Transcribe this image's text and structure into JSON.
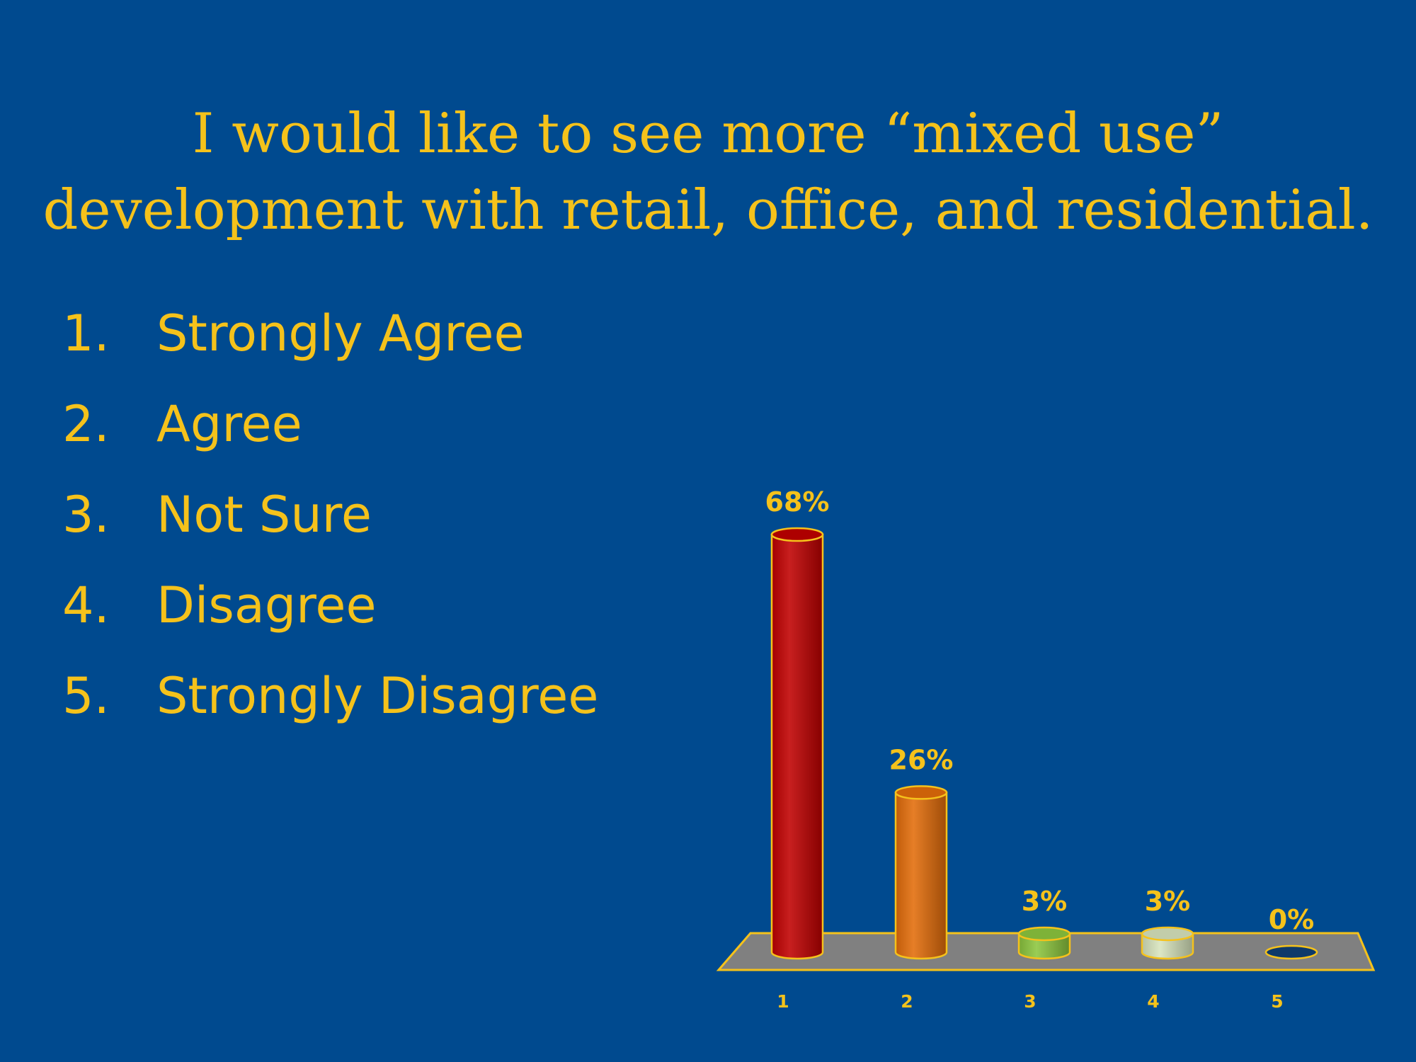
{
  "slide": {
    "title_line1": "I would like to see more “mixed use”",
    "title_line2": "development  with retail, office, and residential."
  },
  "options": [
    {
      "num": "1.",
      "label": "Strongly Agree"
    },
    {
      "num": "2.",
      "label": "Agree"
    },
    {
      "num": "3.",
      "label": "Not Sure"
    },
    {
      "num": "4.",
      "label": "Disagree"
    },
    {
      "num": "5.",
      "label": "Strongly Disagree"
    }
  ],
  "chart_data": {
    "type": "bar",
    "categories": [
      "1",
      "2",
      "3",
      "4",
      "5"
    ],
    "values": [
      68,
      26,
      3,
      3,
      0
    ],
    "data_labels": [
      "68%",
      "26%",
      "3%",
      "3%",
      "0%"
    ],
    "colors": [
      "#c00000",
      "#e36c0a",
      "#8cc63e",
      "#d7e4bd",
      "#0e3a6a"
    ],
    "ylim": [
      0,
      68
    ],
    "grid": false,
    "legend": "none"
  }
}
